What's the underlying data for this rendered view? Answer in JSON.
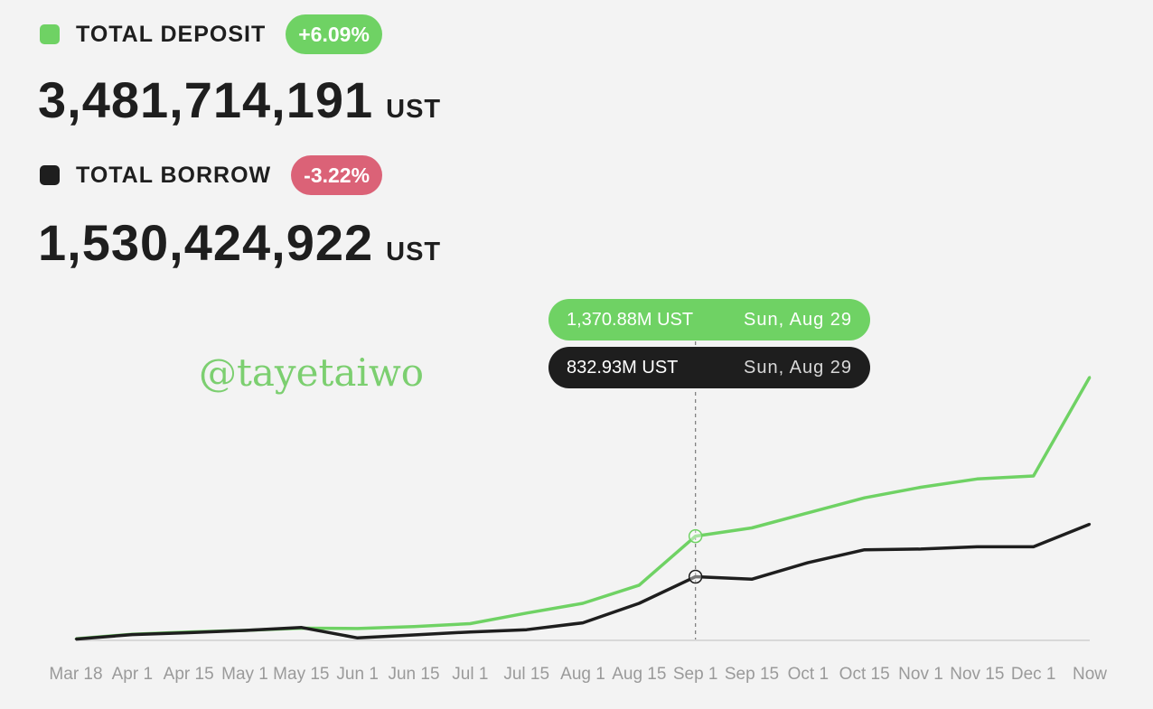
{
  "colors": {
    "deposit": "#6fd264",
    "borrow": "#1e1e1e",
    "positive": "#6fd264",
    "negative": "#db6277",
    "axis": "#cfcfcf",
    "background": "#f3f3f3"
  },
  "deposit": {
    "label": "TOTAL DEPOSIT",
    "change": "+6.09%",
    "value": "3,481,714,191",
    "unit": "UST"
  },
  "borrow": {
    "label": "TOTAL BORROW",
    "change": "-3.22%",
    "value": "1,530,424,922",
    "unit": "UST"
  },
  "tooltip": {
    "deposit_value": "1,370.88M UST",
    "deposit_date": "Sun, Aug 29",
    "borrow_value": "832.93M UST",
    "borrow_date": "Sun, Aug 29"
  },
  "watermark": "@tayetaiwo",
  "chart_data": {
    "type": "line",
    "xlabel": "",
    "ylabel": "",
    "x_ticks": [
      "Mar 18",
      "Apr 1",
      "Apr 15",
      "May 1",
      "May 15",
      "Jun 1",
      "Jun 15",
      "Jul 1",
      "Jul 15",
      "Aug 1",
      "Aug 15",
      "Sep 1",
      "Sep 15",
      "Oct 1",
      "Oct 15",
      "Nov 1",
      "Nov 15",
      "Dec 1",
      "Now"
    ],
    "ylim": [
      0,
      3500
    ],
    "y_unit": "M UST",
    "highlight_index": 11,
    "series": [
      {
        "name": "TOTAL DEPOSIT",
        "key": "deposit",
        "values": [
          10,
          70,
          100,
          120,
          150,
          145,
          170,
          210,
          350,
          480,
          720,
          1370.88,
          1480,
          1680,
          1880,
          2020,
          2130,
          2170,
          3482
        ]
      },
      {
        "name": "TOTAL BORROW",
        "key": "borrow",
        "values": [
          5,
          65,
          90,
          120,
          160,
          20,
          60,
          100,
          130,
          220,
          480,
          832.93,
          800,
          1020,
          1190,
          1200,
          1230,
          1230,
          1530
        ]
      }
    ]
  }
}
